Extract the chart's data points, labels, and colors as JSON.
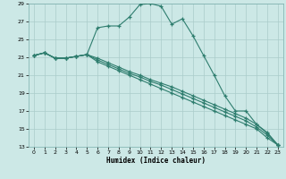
{
  "xlabel": "Humidex (Indice chaleur)",
  "background_color": "#cce8e6",
  "grid_color": "#aaccca",
  "line_color": "#2e7d6e",
  "x_values": [
    0,
    1,
    2,
    3,
    4,
    5,
    6,
    7,
    8,
    9,
    10,
    11,
    12,
    13,
    14,
    15,
    16,
    17,
    18,
    19,
    20,
    21,
    22,
    23
  ],
  "series1": [
    23.2,
    23.5,
    22.9,
    22.9,
    23.1,
    23.3,
    26.3,
    26.5,
    26.5,
    27.5,
    28.9,
    29.0,
    28.7,
    26.7,
    27.3,
    25.4,
    23.2,
    21.0,
    18.7,
    17.0,
    17.0,
    15.5,
    14.5,
    13.2
  ],
  "series2": [
    23.2,
    23.5,
    22.9,
    22.9,
    23.1,
    23.3,
    22.5,
    22.0,
    21.5,
    21.0,
    20.5,
    20.0,
    19.5,
    19.0,
    18.5,
    18.0,
    17.5,
    17.0,
    16.5,
    16.0,
    15.5,
    15.0,
    14.0,
    13.2
  ],
  "series3": [
    23.2,
    23.5,
    22.9,
    22.9,
    23.1,
    23.3,
    22.7,
    22.2,
    21.7,
    21.2,
    20.8,
    20.3,
    19.9,
    19.4,
    18.9,
    18.4,
    17.9,
    17.4,
    16.9,
    16.4,
    15.9,
    15.2,
    14.3,
    13.2
  ],
  "series4": [
    23.2,
    23.5,
    22.9,
    22.9,
    23.1,
    23.3,
    22.9,
    22.4,
    21.9,
    21.4,
    21.0,
    20.5,
    20.1,
    19.7,
    19.2,
    18.7,
    18.2,
    17.7,
    17.2,
    16.7,
    16.2,
    15.5,
    14.6,
    13.2
  ],
  "ylim_min": 13,
  "ylim_max": 29,
  "yticks": [
    13,
    15,
    17,
    19,
    21,
    23,
    25,
    27,
    29
  ],
  "xticks": [
    0,
    1,
    2,
    3,
    4,
    5,
    6,
    7,
    8,
    9,
    10,
    11,
    12,
    13,
    14,
    15,
    16,
    17,
    18,
    19,
    20,
    21,
    22,
    23
  ]
}
